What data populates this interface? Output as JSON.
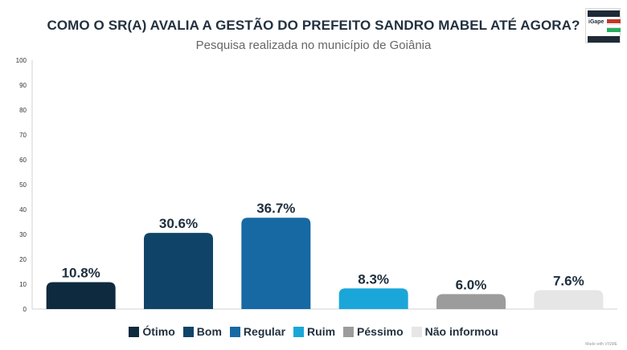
{
  "logo": {
    "text": "iGape"
  },
  "footer": {
    "credit": "Made with VISME"
  },
  "chart_data": {
    "type": "bar",
    "title": "COMO O SR(A) AVALIA A GESTÃO DO PREFEITO SANDRO MABEL ATÉ AGORA?",
    "subtitle": "Pesquisa realizada no município de Goiânia",
    "categories": [
      "Ótimo",
      "Bom",
      "Regular",
      "Ruim",
      "Péssimo",
      "Não informou"
    ],
    "values": [
      10.8,
      30.6,
      36.7,
      8.3,
      6.0,
      7.6
    ],
    "value_labels": [
      "10.8%",
      "30.6%",
      "36.7%",
      "8.3%",
      "6.0%",
      "7.6%"
    ],
    "colors": [
      "#0e2a3f",
      "#0f4468",
      "#1669a3",
      "#1ba6d9",
      "#9c9c9c",
      "#e6e6e6"
    ],
    "ylim": [
      0,
      100
    ],
    "yticks": [
      "0",
      "10",
      "20",
      "30",
      "40",
      "50",
      "60",
      "70",
      "80",
      "90",
      "100"
    ],
    "grid": false,
    "legend": "bottom",
    "xlabel": "",
    "ylabel": ""
  }
}
